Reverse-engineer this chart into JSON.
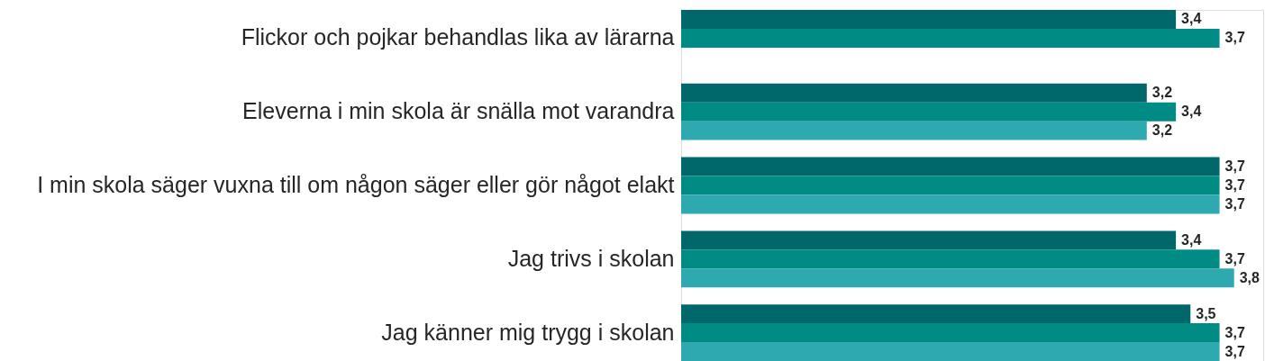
{
  "chart_data": {
    "type": "bar",
    "orientation": "horizontal",
    "tick_labels": "y",
    "categories": [
      "Flickor och pojkar behandlas lika av lärarna",
      "Eleverna i min skola är snälla mot varandra",
      "I min skola säger vuxna till om någon säger eller gör något elakt",
      "Jag trivs i skolan",
      "Jag känner mig trygg i skolan"
    ],
    "series": [
      {
        "color": "#00676b",
        "values": [
          3.4,
          3.2,
          3.7,
          3.4,
          3.5
        ],
        "value_labels": [
          "3,4",
          "3,2",
          "3,7",
          "3,4",
          "3,5"
        ]
      },
      {
        "color": "#008c84",
        "values": [
          3.7,
          3.4,
          3.7,
          3.7,
          3.7
        ],
        "value_labels": [
          "3,7",
          "3,4",
          "3,7",
          "3,7",
          "3,7"
        ]
      },
      {
        "color": "#2ea9b0",
        "values": [
          null,
          3.2,
          3.7,
          3.8,
          3.7
        ],
        "value_labels": [
          null,
          "3,2",
          "3,7",
          "3,8",
          "3,7"
        ]
      }
    ]
  }
}
